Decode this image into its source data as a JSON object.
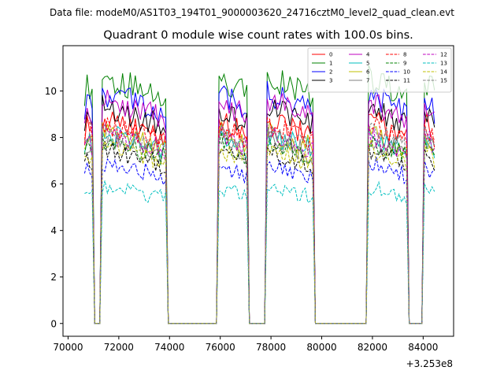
{
  "figure": {
    "suptitle": "Data file: modeM0/AS1T03_194T01_9000003620_24716cztM0_level2_quad_clean.evt"
  },
  "chart_data": {
    "type": "line",
    "title": "Quadrant 0 module wise count rates with 100.0s bins.",
    "xlabel": "",
    "ylabel": "",
    "offset_text": "+3.253e8",
    "xlim": [
      69800,
      85200
    ],
    "ylim": [
      -0.55,
      11.95
    ],
    "x_ticks": [
      70000,
      72000,
      74000,
      76000,
      78000,
      80000,
      82000,
      84000
    ],
    "x_tick_labels": [
      "70000",
      "72000",
      "74000",
      "76000",
      "78000",
      "80000",
      "82000",
      "84000"
    ],
    "y_ticks": [
      0,
      2,
      4,
      6,
      8,
      10
    ],
    "y_tick_labels": [
      "0",
      "2",
      "4",
      "6",
      "8",
      "10"
    ],
    "legend_position": "top-right",
    "bin_seconds": 100,
    "segments": [
      {
        "start": 70650,
        "end": 71000
      },
      {
        "start": 71350,
        "end": 73850
      },
      {
        "start": 75950,
        "end": 77100
      },
      {
        "start": 77800,
        "end": 79700
      },
      {
        "start": 81800,
        "end": 83350
      },
      {
        "start": 84000,
        "end": 84500
      }
    ],
    "zero_runs": [
      {
        "start": 71100,
        "end": 71250
      },
      {
        "start": 73950,
        "end": 75850
      },
      {
        "start": 77200,
        "end": 77700
      },
      {
        "start": 79800,
        "end": 81700
      },
      {
        "start": 83450,
        "end": 83900
      }
    ],
    "series": [
      {
        "name": "0",
        "color": "#ff0000",
        "dash": "solid",
        "level": 8.5
      },
      {
        "name": "1",
        "color": "#008000",
        "dash": "solid",
        "level": 10.3
      },
      {
        "name": "2",
        "color": "#0000ff",
        "dash": "solid",
        "level": 9.6
      },
      {
        "name": "3",
        "color": "#000000",
        "dash": "solid",
        "level": 9.0
      },
      {
        "name": "4",
        "color": "#bf00bf",
        "dash": "solid",
        "level": 9.3
      },
      {
        "name": "5",
        "color": "#00bfbf",
        "dash": "solid",
        "level": 7.9
      },
      {
        "name": "6",
        "color": "#bfbf00",
        "dash": "solid",
        "level": 8.0
      },
      {
        "name": "7",
        "color": "#808080",
        "dash": "solid",
        "level": 7.7
      },
      {
        "name": "8",
        "color": "#ff0000",
        "dash": "dashed",
        "level": 8.3
      },
      {
        "name": "9",
        "color": "#008000",
        "dash": "dashed",
        "level": 7.6
      },
      {
        "name": "10",
        "color": "#0000ff",
        "dash": "dashed",
        "level": 6.7
      },
      {
        "name": "11",
        "color": "#000000",
        "dash": "dashed",
        "level": 7.2
      },
      {
        "name": "12",
        "color": "#bf00bf",
        "dash": "dashed",
        "level": 7.9
      },
      {
        "name": "13",
        "color": "#00bfbf",
        "dash": "dashed",
        "level": 5.7
      },
      {
        "name": "14",
        "color": "#bfbf00",
        "dash": "dashed",
        "level": 7.3
      },
      {
        "name": "15",
        "color": "#808080",
        "dash": "dashed",
        "level": 8.0
      }
    ]
  }
}
